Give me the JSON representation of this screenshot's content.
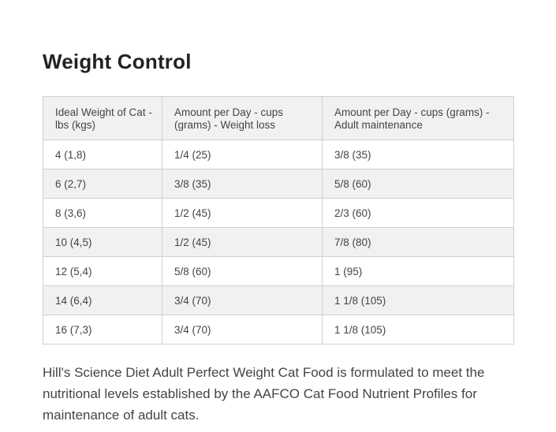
{
  "section": {
    "title": "Weight Control"
  },
  "table": {
    "headers": [
      "Ideal Weight of Cat - lbs (kgs)",
      "Amount per Day - cups (grams) - Weight loss",
      "Amount per Day - cups (grams) - Adult maintenance"
    ],
    "rows": [
      [
        "4 (1,8)",
        "1/4 (25)",
        "3/8 (35)"
      ],
      [
        "6 (2,7)",
        "3/8 (35)",
        "5/8 (60)"
      ],
      [
        "8 (3,6)",
        "1/2 (45)",
        "2/3 (60)"
      ],
      [
        "10 (4,5)",
        "1/2 (45)",
        "7/8 (80)"
      ],
      [
        "12 (5,4)",
        "5/8 (60)",
        "1 (95)"
      ],
      [
        "14 (6,4)",
        "3/4 (70)",
        "1 1/8 (105)"
      ],
      [
        "16 (7,3)",
        "3/4 (70)",
        "1 1/8 (105)"
      ]
    ]
  },
  "footnote": "Hill's Science Diet Adult Perfect Weight Cat Food is formulated to meet the nutritional levels established by the AAFCO Cat Food Nutrient Profiles for maintenance of adult cats."
}
